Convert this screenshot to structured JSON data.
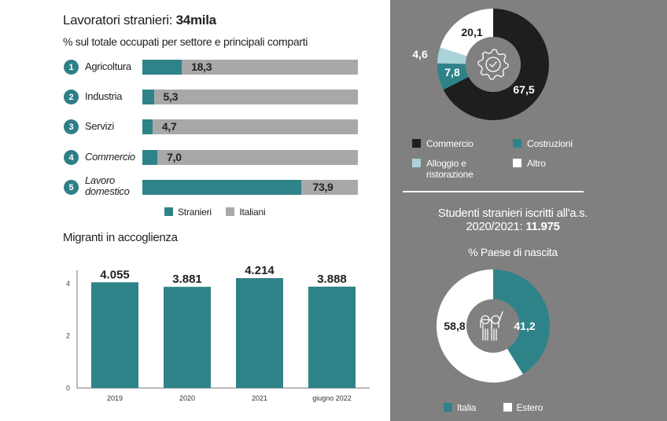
{
  "left_panel": {
    "title_prefix": "Lavoratori stranieri: ",
    "title_value": "34mila",
    "subtitle": "% sul totale occupati per settore e principali comparti",
    "legend": [
      {
        "label": "Stranieri",
        "color": "#2e8389"
      },
      {
        "label": "Italiani",
        "color": "#a8a8a8"
      }
    ],
    "migrants_title": "Migranti in accoglienza"
  },
  "right_panel": {
    "sector_legend": [
      {
        "label": "Commercio",
        "color": "#1e1e1e"
      },
      {
        "label": "Costruzioni",
        "color": "#2e8389"
      },
      {
        "label": "Alloggio e ristorazione",
        "color": "#a9d3d8"
      },
      {
        "label": "Altro",
        "color": "#ffffff"
      }
    ],
    "students_title_line1": "Studenti stranieri iscritti all'a.s.",
    "students_title_line2_prefix": "2020/2021: ",
    "students_title_value": "11.975",
    "students_subtitle": "% Paese di nascita",
    "students_legend": [
      {
        "label": "Italia",
        "color": "#2e8389"
      },
      {
        "label": "Estero",
        "color": "#ffffff"
      }
    ],
    "icons": {
      "sector_donut_center": "gear-check-icon",
      "students_donut_center": "people-waving-icon"
    }
  },
  "chart_data": [
    {
      "type": "bar",
      "orientation": "horizontal-stacked",
      "title": "Lavoratori stranieri: 34mila",
      "subtitle": "% sul totale occupati per settore e principali comparti",
      "categories": [
        {
          "num": "1",
          "label": "Agricoltura",
          "italic": false
        },
        {
          "num": "2",
          "label": "Industria",
          "italic": false
        },
        {
          "num": "3",
          "label": "Servizi",
          "italic": false
        },
        {
          "num": "4",
          "label": "Commercio",
          "italic": true
        },
        {
          "num": "5",
          "label": "Lavoro domestico",
          "italic": true
        }
      ],
      "series": [
        {
          "name": "Stranieri",
          "values": [
            18.3,
            5.3,
            4.7,
            7.0,
            73.9
          ],
          "labels": [
            "18,3",
            "5,3",
            "4,7",
            "7,0",
            "73,9"
          ]
        },
        {
          "name": "Italiani",
          "values": [
            81.7,
            94.7,
            95.3,
            93.0,
            26.1
          ]
        }
      ],
      "xlim": [
        0,
        100
      ],
      "legend": "bottom"
    },
    {
      "type": "bar",
      "title": "Migranti in accoglienza",
      "categories": [
        "2019",
        "2020",
        "2021",
        "giugno 2022"
      ],
      "values": [
        4.055,
        3.881,
        4.214,
        3.888
      ],
      "value_labels": [
        "4.055",
        "3.881",
        "4.214",
        "3.888"
      ],
      "yticks": [
        "0",
        "2",
        "4"
      ],
      "ylim": [
        0,
        4.5
      ],
      "xlabel": "",
      "ylabel": ""
    },
    {
      "type": "pie",
      "variant": "donut",
      "title": "Lavoratori stranieri per settore",
      "slices": [
        {
          "name": "Commercio",
          "value": 67.5,
          "label": "67,5",
          "color": "#1e1e1e",
          "label_color": "#ffffff"
        },
        {
          "name": "Costruzioni",
          "value": 7.8,
          "label": "7,8",
          "color": "#2e8389",
          "label_color": "#ffffff"
        },
        {
          "name": "Alloggio e ristorazione",
          "value": 4.6,
          "label": "4,6",
          "color": "#a9d3d8",
          "label_color": "#ffffff"
        },
        {
          "name": "Altro",
          "value": 20.1,
          "label": "20,1",
          "color": "#ffffff",
          "label_color": "#1e1e1e"
        }
      ],
      "legend": "bottom"
    },
    {
      "type": "pie",
      "variant": "donut",
      "title": "Studenti stranieri iscritti all'a.s. 2020/2021: 11.975",
      "subtitle": "% Paese di nascita",
      "slices": [
        {
          "name": "Italia",
          "value": 41.2,
          "label": "41,2",
          "color": "#2e8389",
          "label_color": "#ffffff"
        },
        {
          "name": "Estero",
          "value": 58.8,
          "label": "58,8",
          "color": "#ffffff",
          "label_color": "#1e1e1e"
        }
      ],
      "legend": "bottom"
    }
  ]
}
